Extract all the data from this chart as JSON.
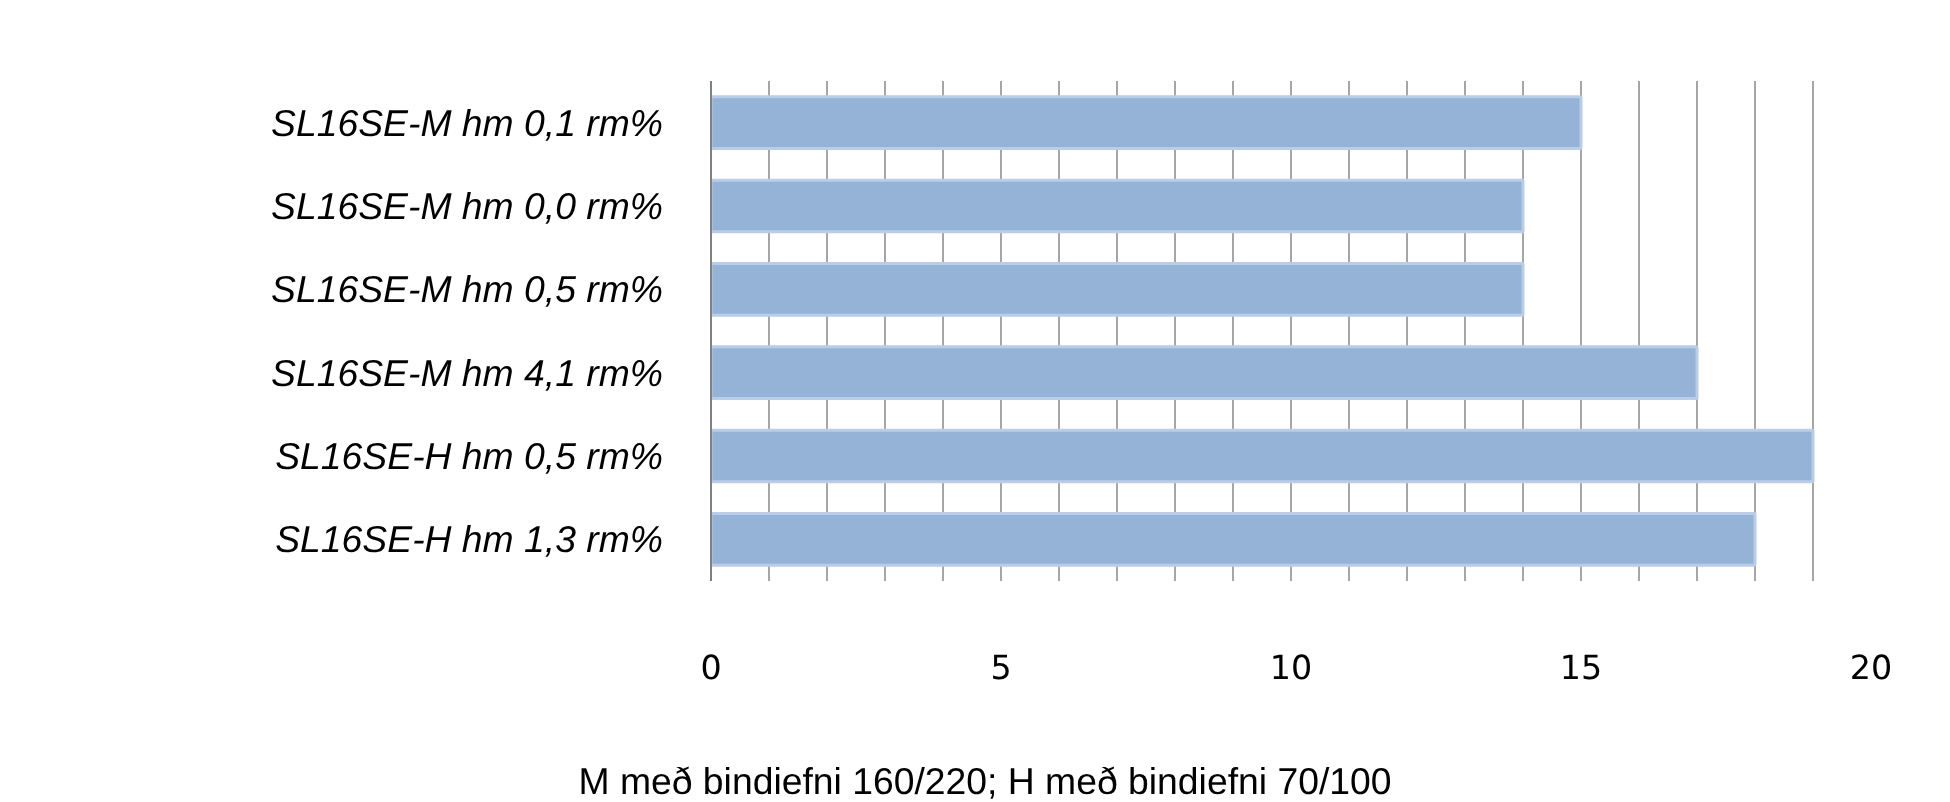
{
  "chart_data": {
    "type": "bar",
    "orientation": "horizontal",
    "categories": [
      "SL16SE-M hm 0,1 rm%",
      "SL16SE-M hm 0,0 rm%",
      "SL16SE-M hm 0,5 rm%",
      "SL16SE-M hm 4,1 rm%",
      "SL16SE-H hm 0,5 rm%",
      "SL16SE-H hm 1,3 rm%"
    ],
    "values": [
      15,
      14,
      14,
      17,
      19,
      18
    ],
    "color": "#95b3d7",
    "xlim": [
      0,
      20
    ],
    "xticks": [
      0,
      {
        "value": 1,
        "label": null
      },
      {
        "value": 2,
        "label": null
      },
      {
        "value": 3,
        "label": null
      },
      {
        "value": 4,
        "label": null
      },
      5,
      {
        "value": 6,
        "label": null
      },
      {
        "value": 7,
        "label": null
      },
      {
        "value": 8,
        "label": null
      },
      {
        "value": 9,
        "label": null
      },
      10,
      {
        "value": 11,
        "label": null
      },
      {
        "value": 12,
        "label": null
      },
      {
        "value": 13,
        "label": null
      },
      {
        "value": 14,
        "label": null
      },
      15,
      {
        "value": 16,
        "label": null
      },
      {
        "value": 17,
        "label": null
      },
      {
        "value": 18,
        "label": null
      },
      {
        "value": 19,
        "label": null
      },
      20
    ],
    "grid": "x",
    "annotations": [
      "M með bindiefni 160/220; H með bindiefni 70/100"
    ]
  }
}
